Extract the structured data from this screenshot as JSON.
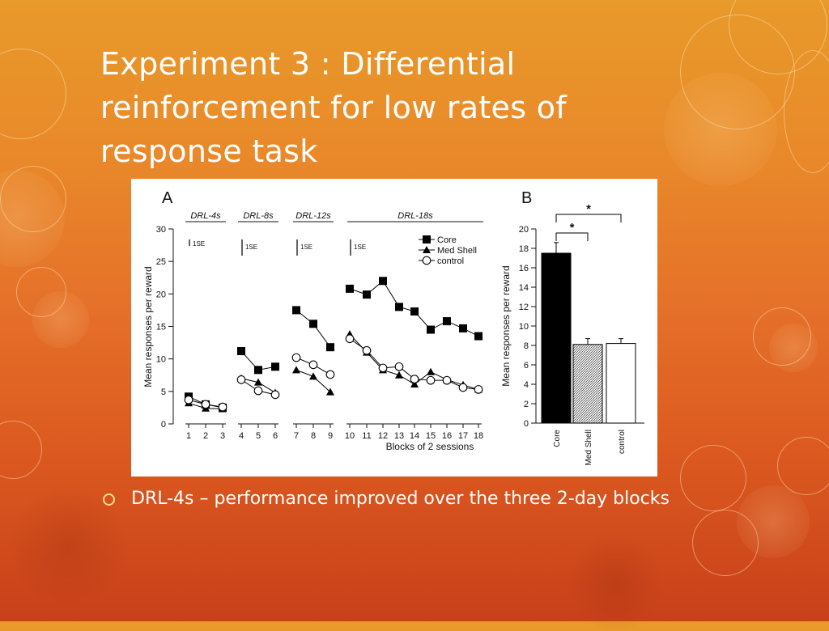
{
  "slide": {
    "title": "Experiment 3 : Differential reinforcement for low rates of response task",
    "bullets": [
      "DRL-4s – performance improved over the three 2-day blocks"
    ]
  },
  "colors": {
    "background_top": "#e89a2a",
    "background_bottom": "#c8401a",
    "title_text": "#ffffff",
    "bullet_marker": "#ffe08a"
  },
  "chart_data": [
    {
      "panel": "A",
      "type": "line",
      "ylabel": "Mean responses per reward",
      "xlabel": "Blocks of 2 sessions",
      "ylim": [
        0,
        30
      ],
      "yticks": [
        0,
        5,
        10,
        15,
        20,
        25,
        30
      ],
      "x": [
        1,
        2,
        3,
        4,
        5,
        6,
        7,
        8,
        9,
        10,
        11,
        12,
        13,
        14,
        15,
        16,
        17,
        18
      ],
      "error_bar_label": "1SE",
      "segments": [
        {
          "label": "DRL-4s",
          "x": [
            1,
            2,
            3
          ]
        },
        {
          "label": "DRL-8s",
          "x": [
            4,
            5,
            6
          ]
        },
        {
          "label": "DRL-12s",
          "x": [
            7,
            8,
            9
          ]
        },
        {
          "label": "DRL-18s",
          "x": [
            10,
            11,
            12,
            13,
            14,
            15,
            16,
            17,
            18
          ]
        }
      ],
      "legend": [
        "Core",
        "Med Shell",
        "control"
      ],
      "legend_position": "top-right",
      "series": [
        {
          "name": "Core",
          "marker": "filled-square",
          "values": [
            4.2,
            3.0,
            2.5,
            11.2,
            8.3,
            8.8,
            17.5,
            15.4,
            11.8,
            20.8,
            19.9,
            22.0,
            18.0,
            17.3,
            14.5,
            15.8,
            14.7,
            13.5
          ]
        },
        {
          "name": "Med Shell",
          "marker": "filled-triangle",
          "values": [
            3.2,
            2.4,
            2.3,
            7.0,
            6.4,
            4.8,
            8.3,
            7.3,
            4.9,
            13.8,
            11.0,
            8.3,
            7.5,
            6.1,
            8.0,
            6.8,
            6.0,
            5.3
          ]
        },
        {
          "name": "control",
          "marker": "open-circle",
          "values": [
            3.7,
            3.0,
            2.6,
            6.8,
            5.1,
            4.5,
            10.2,
            9.1,
            7.6,
            13.1,
            11.3,
            8.6,
            8.8,
            6.9,
            6.7,
            6.7,
            5.6,
            5.3
          ]
        }
      ]
    },
    {
      "panel": "B",
      "type": "bar",
      "ylabel": "Mean responses per reward",
      "ylim": [
        0,
        20
      ],
      "yticks": [
        0,
        2,
        4,
        6,
        8,
        10,
        12,
        14,
        16,
        18,
        20
      ],
      "categories": [
        "Core",
        "Med Shell",
        "control"
      ],
      "values": [
        17.5,
        8.1,
        8.2
      ],
      "errors": [
        1.1,
        0.6,
        0.5
      ],
      "fills": [
        "#000000",
        "hatched",
        "#ffffff"
      ],
      "significance": [
        {
          "pair": [
            "Core",
            "Med Shell"
          ],
          "label": "*"
        },
        {
          "pair": [
            "Core",
            "control"
          ],
          "label": "*"
        }
      ]
    }
  ]
}
